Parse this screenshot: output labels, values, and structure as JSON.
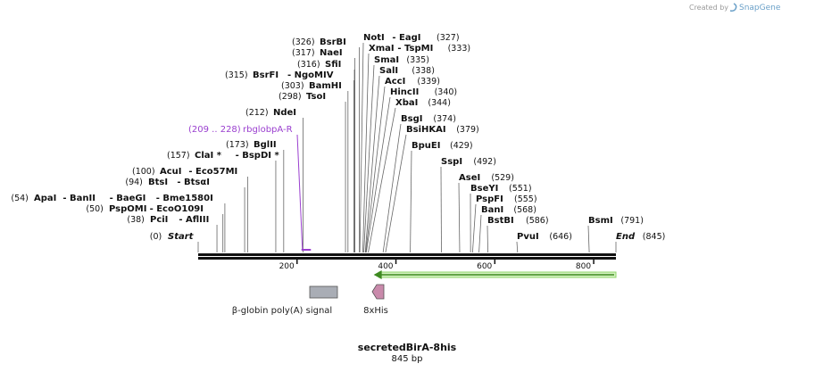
{
  "credit": {
    "prefix": "Created by",
    "brand": "SnapGene"
  },
  "sequence": {
    "name": "secretedBirA-8his",
    "length_label": "845 bp",
    "length": 845
  },
  "axis_ticks": [
    "200",
    "400",
    "600",
    "800"
  ],
  "axis_tick_values": [
    200,
    400,
    600,
    800
  ],
  "enzymes": [
    {
      "id": "bsrbi",
      "pos_label": "(326)",
      "name": "BsrBI",
      "pos": 326
    },
    {
      "id": "nae1",
      "pos_label": "(317)",
      "name": "NaeI",
      "pos": 317
    },
    {
      "id": "sfi1",
      "pos_label": "(316)",
      "name": "SfiI",
      "pos": 316
    },
    {
      "id": "bsrfi",
      "pos_label": "(315)",
      "name": "BsrFI",
      "name2": "- NgoMIV",
      "pos": 315
    },
    {
      "id": "bamhi",
      "pos_label": "(303)",
      "name": "BamHI",
      "pos": 303
    },
    {
      "id": "tsoi",
      "pos_label": "(298)",
      "name": "TsoI",
      "pos": 298
    },
    {
      "id": "ndei",
      "pos_label": "(212)",
      "name": "NdeI",
      "pos": 212
    },
    {
      "id": "bglii",
      "pos_label": "(173)",
      "name": "BglII",
      "pos": 173
    },
    {
      "id": "clai",
      "pos_label": "(157)",
      "name": "ClaI *",
      "name2": "- BspDI *",
      "pos": 157
    },
    {
      "id": "acui",
      "pos_label": "(100)",
      "name": "AcuI",
      "name2": "- Eco57MI",
      "pos": 100
    },
    {
      "id": "btsi",
      "pos_label": "(94)",
      "name": "BtsI",
      "name2": "- BtsαI",
      "pos": 94
    },
    {
      "id": "apai",
      "pos_label": "(54)",
      "name": "ApaI",
      "name2": "- BanII",
      "name3": "- BaeGI",
      "name4": "- Bme1580I",
      "pos": 54
    },
    {
      "id": "pspomi",
      "pos_label": "(50)",
      "name": "PspOMI",
      "name2": "- EcoO109I",
      "pos": 50
    },
    {
      "id": "pcii",
      "pos_label": "(38)",
      "name": "PciI",
      "name2": "- AflIII",
      "pos": 38
    },
    {
      "id": "start",
      "pos_label": "(0)",
      "name": "Start",
      "pos": 0
    },
    {
      "id": "noti",
      "pos_label": "(327)",
      "name": "NotI",
      "name2": "- EagI",
      "pos": 327
    },
    {
      "id": "xmai",
      "pos_label": "(333)",
      "name": "XmaI",
      "name2": "- TspMI",
      "pos": 333
    },
    {
      "id": "smai",
      "pos_label": "(335)",
      "name": "SmaI",
      "pos": 335
    },
    {
      "id": "sali",
      "pos_label": "(338)",
      "name": "SalI",
      "pos": 338
    },
    {
      "id": "acci",
      "pos_label": "(339)",
      "name": "AccI",
      "pos": 339
    },
    {
      "id": "hincii",
      "pos_label": "(340)",
      "name": "HincII",
      "pos": 340
    },
    {
      "id": "xbai",
      "pos_label": "(344)",
      "name": "XbaI",
      "pos": 344
    },
    {
      "id": "bsgi",
      "pos_label": "(374)",
      "name": "BsgI",
      "pos": 374
    },
    {
      "id": "bsihkai",
      "pos_label": "(379)",
      "name": "BsiHKAI",
      "pos": 379
    },
    {
      "id": "bpuei",
      "pos_label": "(429)",
      "name": "BpuEI",
      "pos": 429
    },
    {
      "id": "sspi",
      "pos_label": "(492)",
      "name": "SspI",
      "pos": 492
    },
    {
      "id": "asei",
      "pos_label": "(529)",
      "name": "AseI",
      "pos": 529
    },
    {
      "id": "bseyi",
      "pos_label": "(551)",
      "name": "BseYI",
      "pos": 551
    },
    {
      "id": "pspfi",
      "pos_label": "(555)",
      "name": "PspFI",
      "pos": 555
    },
    {
      "id": "bani",
      "pos_label": "(568)",
      "name": "BanI",
      "pos": 568
    },
    {
      "id": "bstbi",
      "pos_label": "(586)",
      "name": "BstBI",
      "pos": 586
    },
    {
      "id": "pvui",
      "pos_label": "(646)",
      "name": "PvuI",
      "pos": 646
    },
    {
      "id": "bsmi",
      "pos_label": "(791)",
      "name": "BsmI",
      "pos": 791
    },
    {
      "id": "end",
      "pos_label": "(845)",
      "name": "End",
      "pos": 845
    }
  ],
  "primer": {
    "range_label": "(209 .. 228)",
    "name": "rbglobpA-R",
    "start": 209,
    "end": 228,
    "color": "#9a3fcf"
  },
  "features": [
    {
      "id": "polya",
      "label": "β-globin poly(A) signal",
      "start": 225,
      "end": 282,
      "color": "#a9adb5",
      "icon": "box-feature"
    },
    {
      "id": "his",
      "label": "8xHis",
      "start": 354,
      "end": 378,
      "color": "#c98aab",
      "icon": "pentagon-arrow-feature"
    }
  ],
  "orf": {
    "start": 355,
    "end": 845,
    "direction": "reverse",
    "color": "#8fd46a",
    "icon": "arrow-left"
  }
}
